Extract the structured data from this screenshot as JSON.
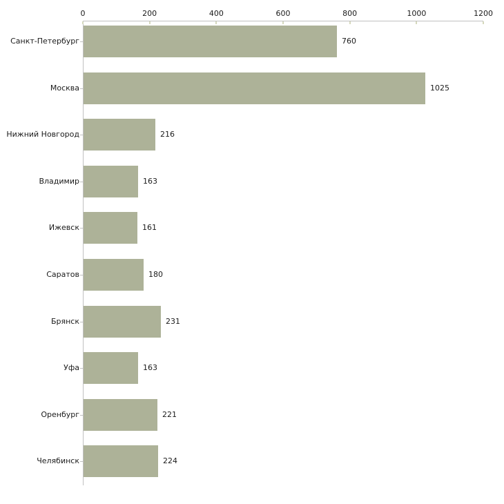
{
  "chart_data": {
    "type": "bar",
    "orientation": "horizontal",
    "title": "",
    "categories": [
      "Санкт-Петербург",
      "Москва",
      "Нижний Новгород",
      "Владимир",
      "Ижевск",
      "Саратов",
      "Брянск",
      "Уфа",
      "Оренбург",
      "Челябинск"
    ],
    "values": [
      760,
      1025,
      216,
      163,
      161,
      180,
      231,
      163,
      221,
      224
    ],
    "data_labels": [
      "760",
      "1025",
      "216",
      "163",
      "161",
      "180",
      "231",
      "163",
      "221",
      "224"
    ],
    "xlim": [
      0,
      1200
    ],
    "x_ticks": [
      "0",
      "200",
      "400",
      "600",
      "800",
      "1000",
      "1200"
    ],
    "x_tick_values": [
      0,
      200,
      400,
      600,
      800,
      1000,
      1200
    ],
    "grid": false,
    "legend": false,
    "xlabel": "",
    "ylabel": ""
  },
  "colors": {
    "bar": "#adb298",
    "axis": "#c0c0c0",
    "x_tick": "#d5d8bd",
    "y_tick": "#bfbfbf",
    "text": "#1a1a1a",
    "background": "#ffffff"
  }
}
